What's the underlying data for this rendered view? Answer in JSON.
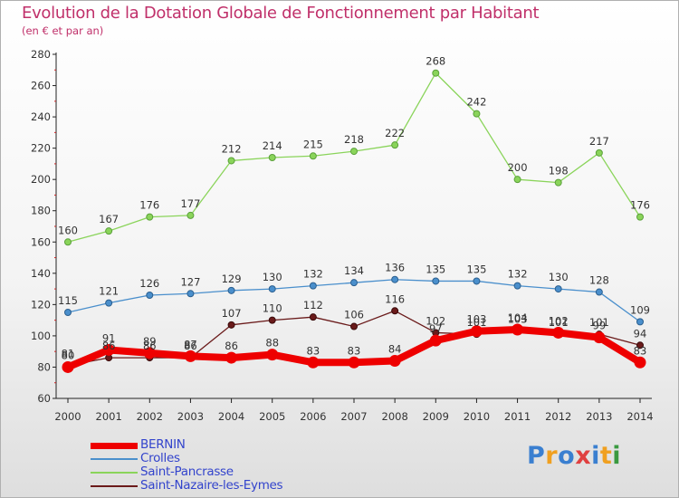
{
  "title": "Evolution de la Dotation Globale de Fonctionnement par Habitant",
  "subtitle": "(en € et par an)",
  "logo_text": "Proxiti",
  "chart_data": {
    "type": "line",
    "title": "Evolution de la Dotation Globale de Fonctionnement par Habitant",
    "subtitle": "(en € et par an)",
    "xlabel": "",
    "ylabel": "",
    "ylim": [
      60,
      280
    ],
    "yticks": [
      60,
      80,
      100,
      120,
      140,
      160,
      180,
      200,
      220,
      240,
      260,
      280
    ],
    "categories": [
      "2000",
      "2001",
      "2002",
      "2003",
      "2004",
      "2005",
      "2006",
      "2007",
      "2008",
      "2009",
      "2010",
      "2011",
      "2012",
      "2013",
      "2014"
    ],
    "grid": false,
    "legend_position": "bottom-left",
    "series": [
      {
        "name": "BERNIN",
        "color": "#ee0000",
        "values": [
          80,
          91,
          89,
          87,
          86,
          88,
          83,
          83,
          84,
          97,
          103,
          104,
          102,
          99,
          83
        ]
      },
      {
        "name": "Crolles",
        "color": "#4a8fcc",
        "values": [
          115,
          121,
          126,
          127,
          129,
          130,
          132,
          134,
          136,
          135,
          135,
          132,
          130,
          128,
          109
        ]
      },
      {
        "name": "Saint-Pancrasse",
        "color": "#8ad45a",
        "values": [
          160,
          167,
          176,
          177,
          212,
          214,
          215,
          218,
          222,
          268,
          242,
          200,
          198,
          217,
          176
        ]
      },
      {
        "name": "Saint-Nazaire-les-Eymes",
        "color": "#6a1a1a",
        "values": [
          81,
          86,
          86,
          86,
          107,
          110,
          112,
          106,
          116,
          102,
          101,
          103,
          101,
          101,
          94
        ]
      }
    ]
  }
}
